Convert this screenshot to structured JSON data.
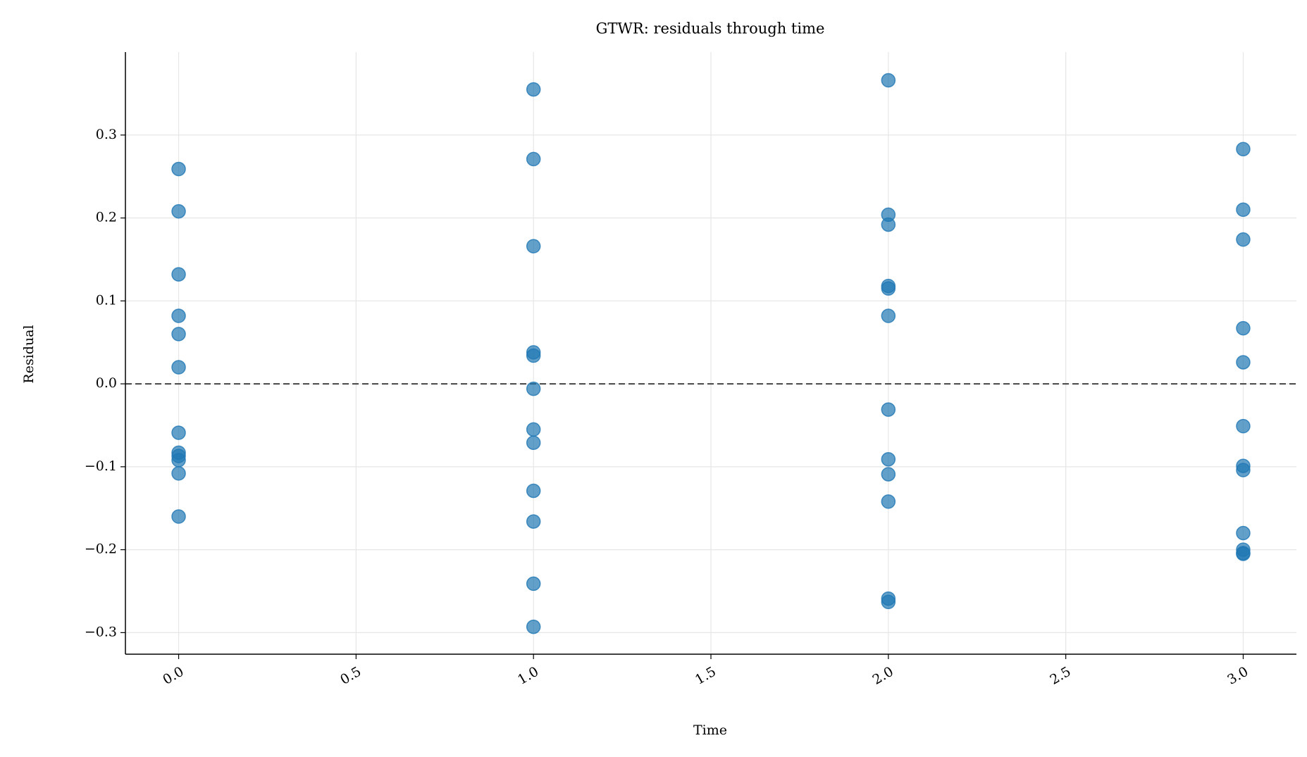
{
  "chart_data": {
    "type": "scatter",
    "title": "GTWR: residuals through time",
    "x_label": "Time",
    "y_label": "Residual",
    "x": [
      0,
      0,
      0,
      0,
      0,
      0,
      0,
      0,
      0,
      0,
      0,
      0,
      1,
      1,
      1,
      1,
      1,
      1,
      1,
      1,
      1,
      1,
      1,
      1,
      2,
      2,
      2,
      2,
      2,
      2,
      2,
      2,
      2,
      2,
      2,
      2,
      3,
      3,
      3,
      3,
      3,
      3,
      3,
      3,
      3,
      3,
      3,
      3
    ],
    "values": [
      0.259,
      0.208,
      0.132,
      0.082,
      0.06,
      0.02,
      -0.059,
      -0.083,
      -0.087,
      -0.092,
      -0.108,
      -0.16,
      0.355,
      0.271,
      0.166,
      0.038,
      0.034,
      -0.006,
      -0.055,
      -0.071,
      -0.129,
      -0.166,
      -0.241,
      -0.293,
      0.366,
      0.204,
      0.192,
      0.118,
      0.115,
      0.082,
      -0.031,
      -0.091,
      -0.109,
      -0.142,
      -0.259,
      -0.263,
      0.283,
      0.21,
      0.174,
      0.067,
      0.026,
      -0.051,
      -0.099,
      -0.104,
      -0.18,
      -0.2,
      -0.204,
      -0.205
    ],
    "color": "#1f77b4",
    "hline": 0,
    "xlim": [
      -0.15,
      3.15
    ],
    "ylim": [
      -0.326,
      0.4
    ],
    "xticks": [
      {
        "value": 0,
        "label": "0.0"
      },
      {
        "value": 0.5,
        "label": "0.5"
      },
      {
        "value": 1,
        "label": "1.0"
      },
      {
        "value": 1.5,
        "label": "1.5"
      },
      {
        "value": 2,
        "label": "2.0"
      },
      {
        "value": 2.5,
        "label": "2.5"
      },
      {
        "value": 3,
        "label": "3.0"
      }
    ],
    "yticks": [
      {
        "value": -0.3,
        "label": "−0.3"
      },
      {
        "value": -0.2,
        "label": "−0.2"
      },
      {
        "value": -0.1,
        "label": "−0.1"
      },
      {
        "value": 0,
        "label": "0.0"
      },
      {
        "value": 0.1,
        "label": "0.1"
      },
      {
        "value": 0.2,
        "label": "0.2"
      },
      {
        "value": 0.3,
        "label": "0.3"
      }
    ],
    "grid": true
  }
}
